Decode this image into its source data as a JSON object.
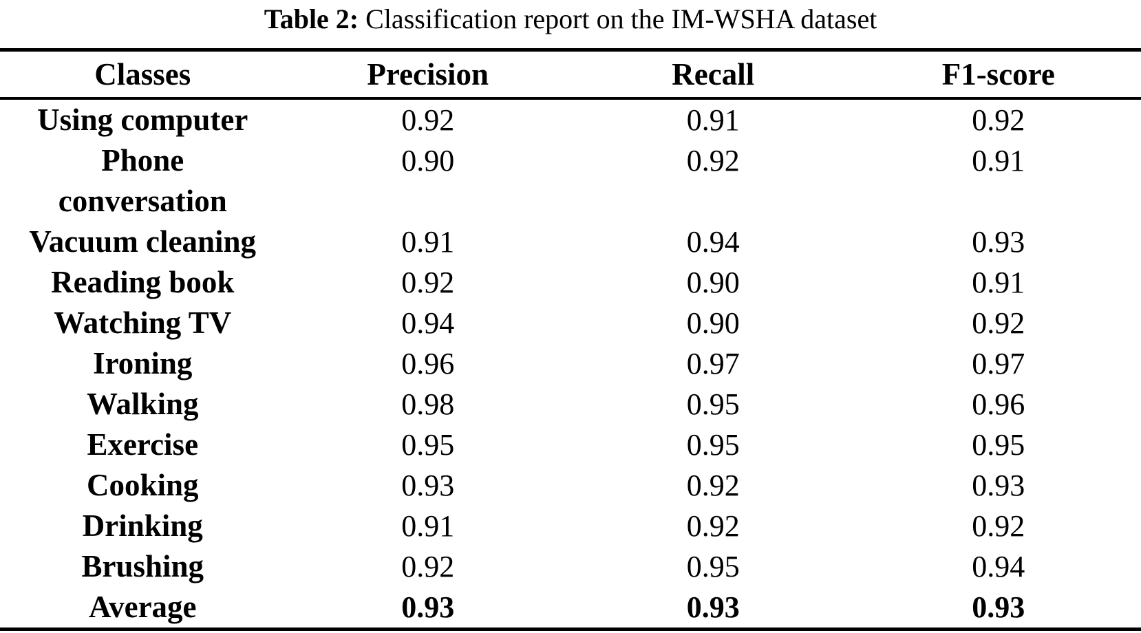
{
  "caption": {
    "label": "Table 2:",
    "text": " Classification report on the IM-WSHA dataset"
  },
  "table": {
    "headers": [
      "Classes",
      "Precision",
      "Recall",
      "F1-score"
    ],
    "rows": [
      {
        "label": "Using computer",
        "precision": "0.92",
        "recall": "0.91",
        "f1": "0.92"
      },
      {
        "label": "Phone conversation",
        "precision": "0.90",
        "recall": "0.92",
        "f1": "0.91"
      },
      {
        "label": "Vacuum cleaning",
        "precision": "0.91",
        "recall": "0.94",
        "f1": "0.93"
      },
      {
        "label": "Reading book",
        "precision": "0.92",
        "recall": "0.90",
        "f1": "0.91"
      },
      {
        "label": "Watching TV",
        "precision": "0.94",
        "recall": "0.90",
        "f1": "0.92"
      },
      {
        "label": "Ironing",
        "precision": "0.96",
        "recall": "0.97",
        "f1": "0.97"
      },
      {
        "label": "Walking",
        "precision": "0.98",
        "recall": "0.95",
        "f1": "0.96"
      },
      {
        "label": "Exercise",
        "precision": "0.95",
        "recall": "0.95",
        "f1": "0.95"
      },
      {
        "label": "Cooking",
        "precision": "0.93",
        "recall": "0.92",
        "f1": "0.93"
      },
      {
        "label": "Drinking",
        "precision": "0.91",
        "recall": "0.92",
        "f1": "0.92"
      },
      {
        "label": "Brushing",
        "precision": "0.92",
        "recall": "0.95",
        "f1": "0.94"
      },
      {
        "label": "Average",
        "precision": "0.93",
        "recall": "0.93",
        "f1": "0.93"
      }
    ]
  },
  "colors": {
    "text": "#000000",
    "background": "#ffffff",
    "rule": "#000000"
  },
  "chart_data": {
    "type": "table",
    "title": "Table 2: Classification report on the IM-WSHA dataset",
    "columns": [
      "Classes",
      "Precision",
      "Recall",
      "F1-score"
    ],
    "rows": [
      [
        "Using computer",
        0.92,
        0.91,
        0.92
      ],
      [
        "Phone conversation",
        0.9,
        0.92,
        0.91
      ],
      [
        "Vacuum cleaning",
        0.91,
        0.94,
        0.93
      ],
      [
        "Reading book",
        0.92,
        0.9,
        0.91
      ],
      [
        "Watching TV",
        0.94,
        0.9,
        0.92
      ],
      [
        "Ironing",
        0.96,
        0.97,
        0.97
      ],
      [
        "Walking",
        0.98,
        0.95,
        0.96
      ],
      [
        "Exercise",
        0.95,
        0.95,
        0.95
      ],
      [
        "Cooking",
        0.93,
        0.92,
        0.93
      ],
      [
        "Drinking",
        0.91,
        0.92,
        0.92
      ],
      [
        "Brushing",
        0.92,
        0.95,
        0.94
      ],
      [
        "Average",
        0.93,
        0.93,
        0.93
      ]
    ]
  }
}
